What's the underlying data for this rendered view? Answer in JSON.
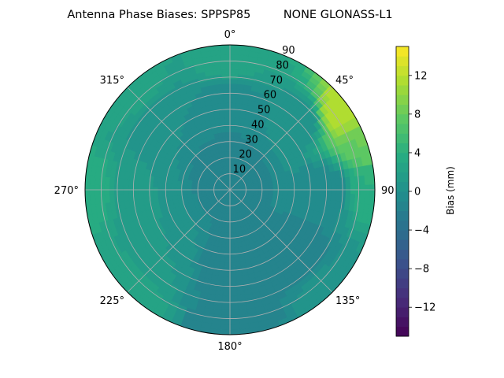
{
  "chart_data": {
    "type": "heatmap",
    "projection": "polar",
    "title": "Antenna Phase Biases: SPPSP85         NONE GLONASS-L1",
    "azimuth_labels": [
      {
        "deg": 0,
        "label": "0°"
      },
      {
        "deg": 45,
        "label": "45°"
      },
      {
        "deg": 90,
        "label": "90"
      },
      {
        "deg": 135,
        "label": "135°"
      },
      {
        "deg": 180,
        "label": "180°"
      },
      {
        "deg": 225,
        "label": "225°"
      },
      {
        "deg": 270,
        "label": "270°"
      },
      {
        "deg": 315,
        "label": "315°"
      }
    ],
    "radial_ticks": [
      10,
      20,
      30,
      40,
      50,
      60,
      70,
      80,
      90
    ],
    "radial_range": [
      0,
      90
    ],
    "angular_direction": "clockwise",
    "zero_location": "top",
    "grid": true,
    "colormap": "viridis",
    "colorbar": {
      "label": "Bias (mm)",
      "range": [
        -15,
        15
      ],
      "ticks": [
        -12,
        -8,
        -4,
        0,
        4,
        8,
        12
      ],
      "tick_labels": [
        "−12",
        "−8",
        "−4",
        "0",
        "4",
        "8",
        "12"
      ],
      "levels": 30
    },
    "field_samples": [
      {
        "azimuth": 0,
        "radius": 10,
        "bias": -2
      },
      {
        "azimuth": 0,
        "radius": 50,
        "bias": -1
      },
      {
        "azimuth": 0,
        "radius": 85,
        "bias": 3
      },
      {
        "azimuth": 45,
        "radius": 60,
        "bias": 0
      },
      {
        "azimuth": 55,
        "radius": 85,
        "bias": 12
      },
      {
        "azimuth": 70,
        "radius": 88,
        "bias": 8
      },
      {
        "azimuth": 90,
        "radius": 60,
        "bias": -1
      },
      {
        "azimuth": 90,
        "radius": 88,
        "bias": 4
      },
      {
        "azimuth": 135,
        "radius": 60,
        "bias": -2
      },
      {
        "azimuth": 135,
        "radius": 88,
        "bias": 1
      },
      {
        "azimuth": 180,
        "radius": 50,
        "bias": -2
      },
      {
        "azimuth": 180,
        "radius": 85,
        "bias": -2
      },
      {
        "azimuth": 225,
        "radius": 60,
        "bias": 1
      },
      {
        "azimuth": 225,
        "radius": 88,
        "bias": 3
      },
      {
        "azimuth": 270,
        "radius": 60,
        "bias": 1
      },
      {
        "azimuth": 270,
        "radius": 88,
        "bias": 4
      },
      {
        "azimuth": 315,
        "radius": 60,
        "bias": 0
      },
      {
        "azimuth": 315,
        "radius": 88,
        "bias": 3
      }
    ]
  }
}
